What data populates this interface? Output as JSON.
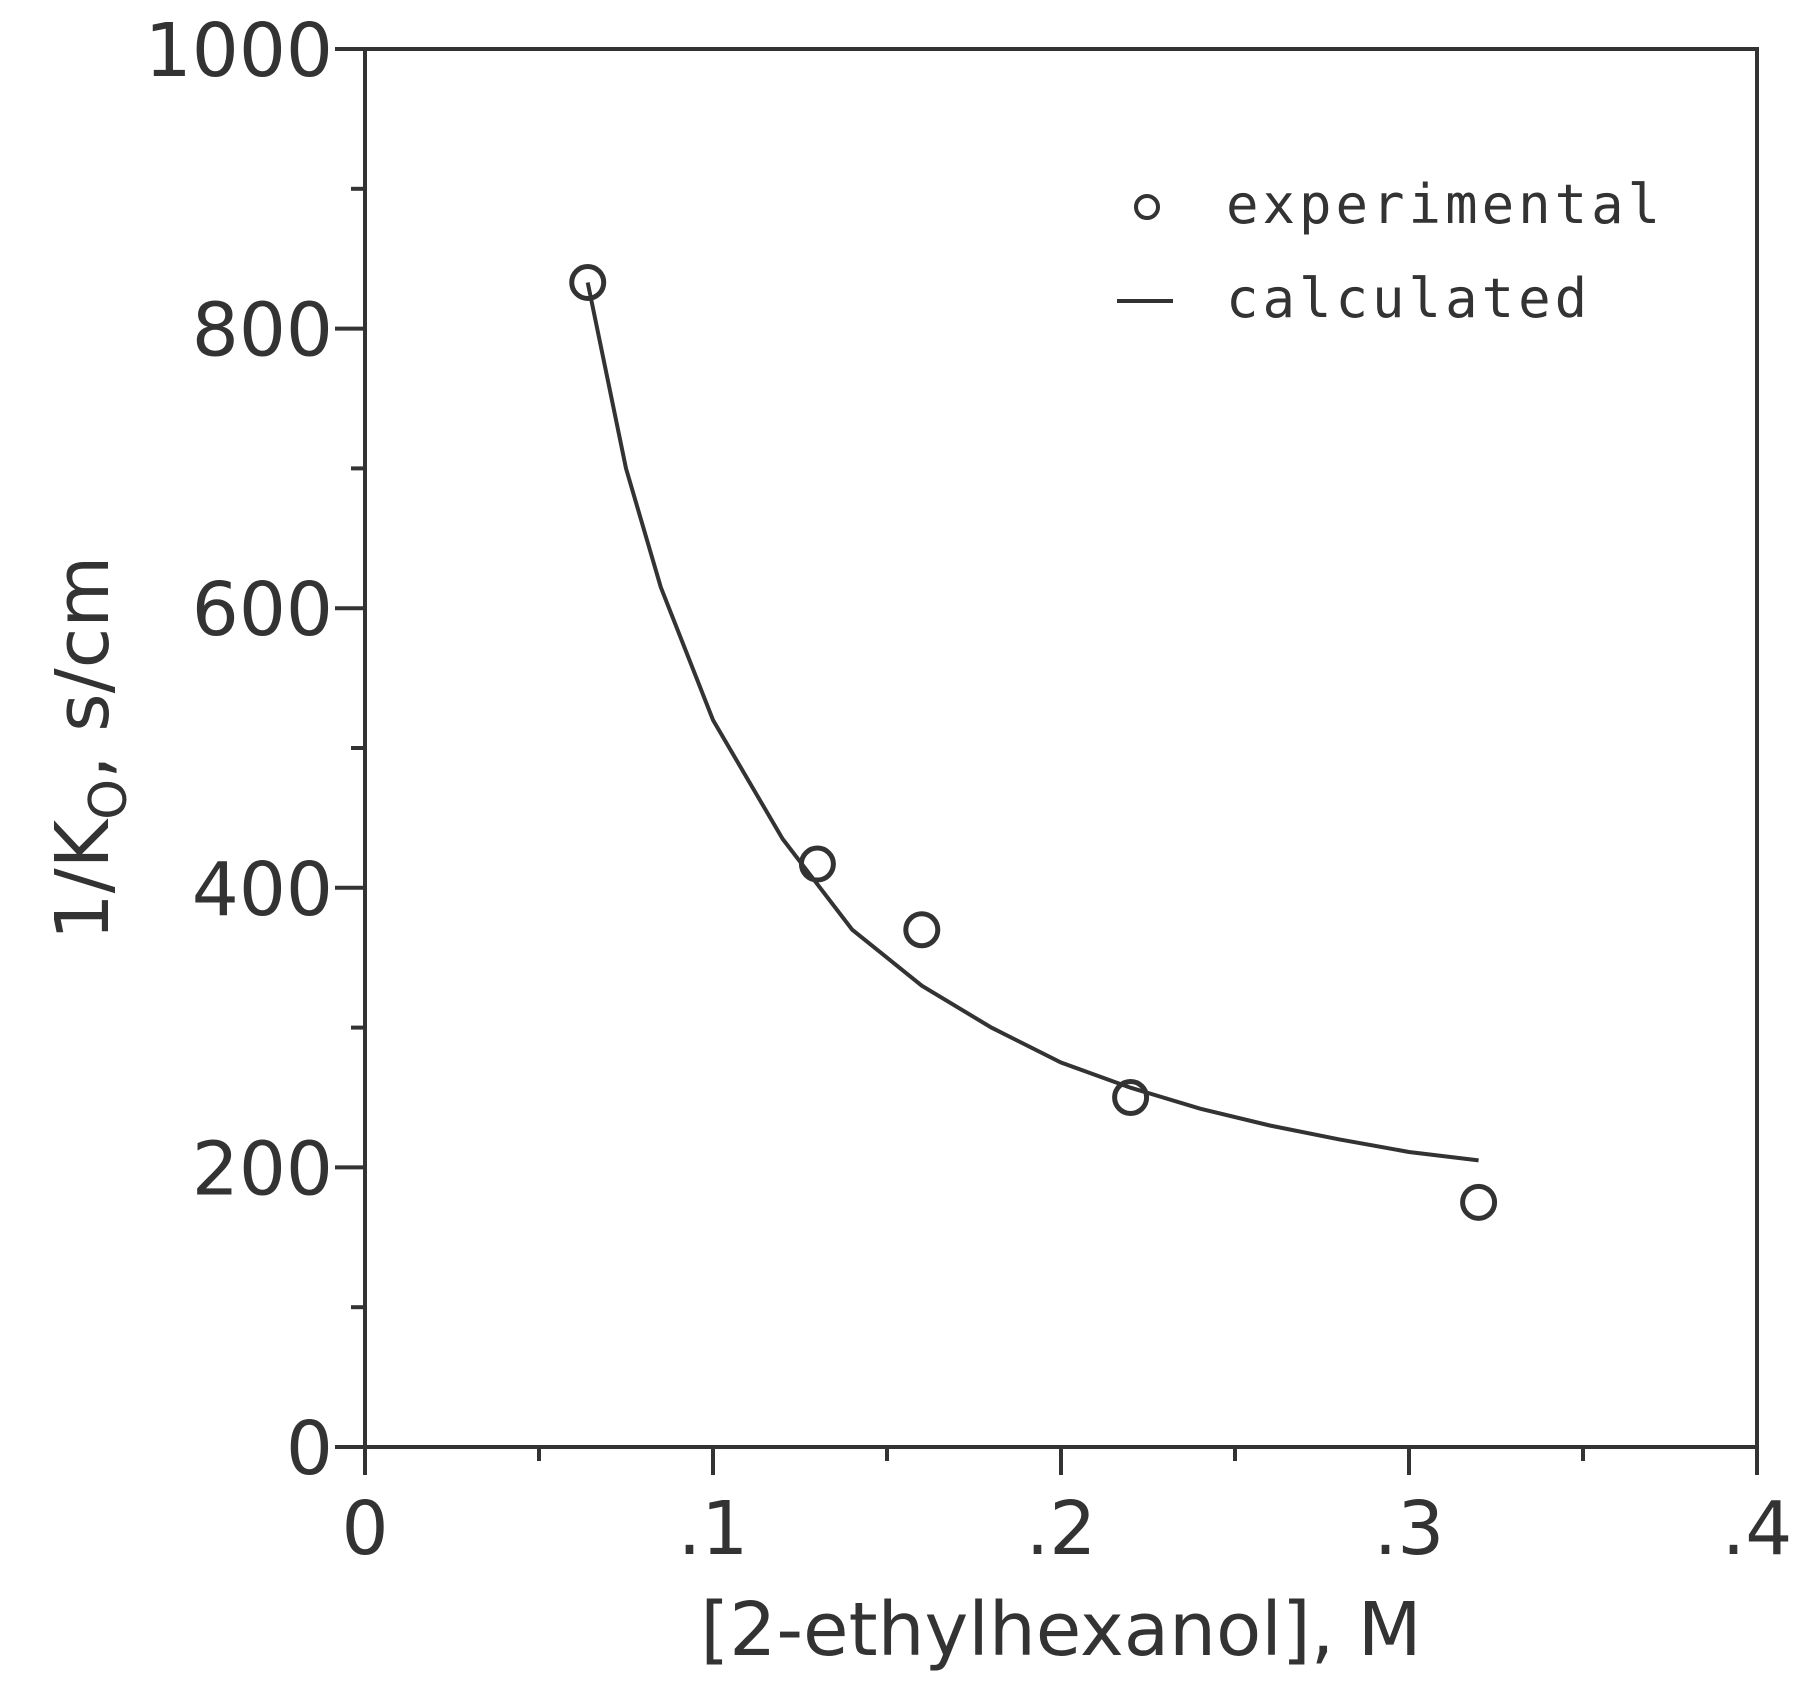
{
  "chart_data": {
    "type": "scatter",
    "title": "",
    "xlabel": "[2-ethylhexanol], M",
    "ylabel_main": "1/K",
    "ylabel_sub": "O",
    "ylabel_tail": ", s/cm",
    "xlim": [
      0,
      0.4
    ],
    "ylim": [
      0,
      1000
    ],
    "x_ticks": [
      {
        "value": 0,
        "label": "0"
      },
      {
        "value": 0.1,
        "label": ".1"
      },
      {
        "value": 0.2,
        "label": ".2"
      },
      {
        "value": 0.3,
        "label": ".3"
      },
      {
        "value": 0.4,
        "label": ".4"
      }
    ],
    "x_minor_ticks": [
      0.05,
      0.15,
      0.25,
      0.35
    ],
    "y_ticks": [
      {
        "value": 0,
        "label": "0"
      },
      {
        "value": 200,
        "label": "200"
      },
      {
        "value": 400,
        "label": "400"
      },
      {
        "value": 600,
        "label": "600"
      },
      {
        "value": 800,
        "label": "800"
      },
      {
        "value": 1000,
        "label": "1000"
      }
    ],
    "y_minor_ticks": [
      100,
      300,
      500,
      700,
      900
    ],
    "grid": false,
    "legend_position": "top-right",
    "series": [
      {
        "name": "experimental",
        "kind": "scatter",
        "marker": "open-circle",
        "x": [
          0.064,
          0.13,
          0.16,
          0.22,
          0.32
        ],
        "y": [
          833,
          417,
          370,
          250,
          175
        ]
      },
      {
        "name": "calculated",
        "kind": "line",
        "x": [
          0.064,
          0.075,
          0.085,
          0.1,
          0.12,
          0.14,
          0.16,
          0.18,
          0.2,
          0.22,
          0.24,
          0.26,
          0.28,
          0.3,
          0.32
        ],
        "y": [
          833,
          700,
          615,
          520,
          435,
          370,
          330,
          300,
          275,
          257,
          242,
          230,
          220,
          211,
          205
        ]
      }
    ],
    "colors": {
      "ink": "#333333",
      "background": "#ffffff"
    }
  }
}
